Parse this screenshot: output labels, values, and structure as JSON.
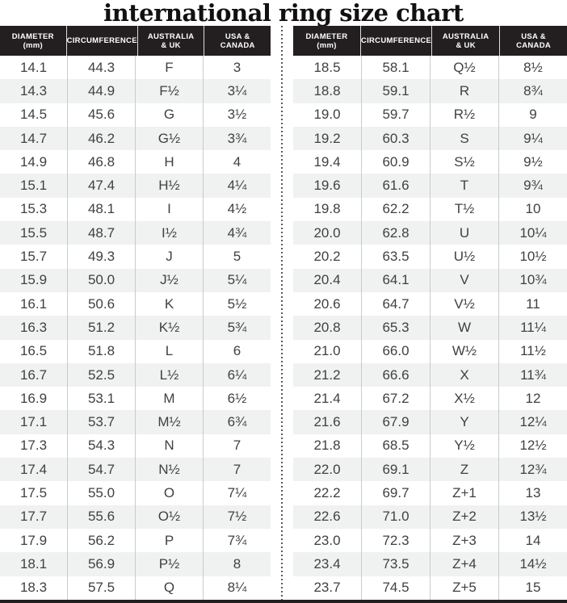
{
  "title": "international ring size chart",
  "colors": {
    "header_bg": "#231f20",
    "header_text": "#ffffff",
    "body_text": "#414042",
    "alt_row_bg": "#f0f1f1",
    "column_divider": "#c9cbcc",
    "dotted_divider": "#58595b",
    "bottom_bar": "#231f20"
  },
  "chart_data": {
    "type": "table",
    "title": "international ring size chart",
    "columns": [
      "DIAMETER (mm)",
      "CIRCUMFERENCE",
      "AUSTRALIA & UK",
      "USA & CANADA"
    ],
    "columns_display": [
      {
        "line1": "DIAMETER",
        "line2": "(mm)"
      },
      {
        "line1": "CIRCUMFERENCE",
        "line2": ""
      },
      {
        "line1": "AUSTRALIA",
        "line2": "& UK"
      },
      {
        "line1": "USA &",
        "line2": "CANADA"
      }
    ],
    "tables": [
      {
        "side": "left",
        "rows": [
          [
            "14.1",
            "44.3",
            "F",
            "3"
          ],
          [
            "14.3",
            "44.9",
            "F½",
            "3¼"
          ],
          [
            "14.5",
            "45.6",
            "G",
            "3½"
          ],
          [
            "14.7",
            "46.2",
            "G½",
            "3¾"
          ],
          [
            "14.9",
            "46.8",
            "H",
            "4"
          ],
          [
            "15.1",
            "47.4",
            "H½",
            "4¼"
          ],
          [
            "15.3",
            "48.1",
            "I",
            "4½"
          ],
          [
            "15.5",
            "48.7",
            "I½",
            "4¾"
          ],
          [
            "15.7",
            "49.3",
            "J",
            "5"
          ],
          [
            "15.9",
            "50.0",
            "J½",
            "5¼"
          ],
          [
            "16.1",
            "50.6",
            "K",
            "5½"
          ],
          [
            "16.3",
            "51.2",
            "K½",
            "5¾"
          ],
          [
            "16.5",
            "51.8",
            "L",
            "6"
          ],
          [
            "16.7",
            "52.5",
            "L½",
            "6¼"
          ],
          [
            "16.9",
            "53.1",
            "M",
            "6½"
          ],
          [
            "17.1",
            "53.7",
            "M½",
            "6¾"
          ],
          [
            "17.3",
            "54.3",
            "N",
            "7"
          ],
          [
            "17.4",
            "54.7",
            "N½",
            "7"
          ],
          [
            "17.5",
            "55.0",
            "O",
            "7¼"
          ],
          [
            "17.7",
            "55.6",
            "O½",
            "7½"
          ],
          [
            "17.9",
            "56.2",
            "P",
            "7¾"
          ],
          [
            "18.1",
            "56.9",
            "P½",
            "8"
          ],
          [
            "18.3",
            "57.5",
            "Q",
            "8¼"
          ]
        ]
      },
      {
        "side": "right",
        "rows": [
          [
            "18.5",
            "58.1",
            "Q½",
            "8½"
          ],
          [
            "18.8",
            "59.1",
            "R",
            "8¾"
          ],
          [
            "19.0",
            "59.7",
            "R½",
            "9"
          ],
          [
            "19.2",
            "60.3",
            "S",
            "9¼"
          ],
          [
            "19.4",
            "60.9",
            "S½",
            "9½"
          ],
          [
            "19.6",
            "61.6",
            "T",
            "9¾"
          ],
          [
            "19.8",
            "62.2",
            "T½",
            "10"
          ],
          [
            "20.0",
            "62.8",
            "U",
            "10¼"
          ],
          [
            "20.2",
            "63.5",
            "U½",
            "10½"
          ],
          [
            "20.4",
            "64.1",
            "V",
            "10¾"
          ],
          [
            "20.6",
            "64.7",
            "V½",
            "11"
          ],
          [
            "20.8",
            "65.3",
            "W",
            "11¼"
          ],
          [
            "21.0",
            "66.0",
            "W½",
            "11½"
          ],
          [
            "21.2",
            "66.6",
            "X",
            "11¾"
          ],
          [
            "21.4",
            "67.2",
            "X½",
            "12"
          ],
          [
            "21.6",
            "67.9",
            "Y",
            "12¼"
          ],
          [
            "21.8",
            "68.5",
            "Y½",
            "12½"
          ],
          [
            "22.0",
            "69.1",
            "Z",
            "12¾"
          ],
          [
            "22.2",
            "69.7",
            "Z+1",
            "13"
          ],
          [
            "22.6",
            "71.0",
            "Z+2",
            "13½"
          ],
          [
            "23.0",
            "72.3",
            "Z+3",
            "14"
          ],
          [
            "23.4",
            "73.5",
            "Z+4",
            "14½"
          ],
          [
            "23.7",
            "74.5",
            "Z+5",
            "15"
          ]
        ]
      }
    ]
  }
}
